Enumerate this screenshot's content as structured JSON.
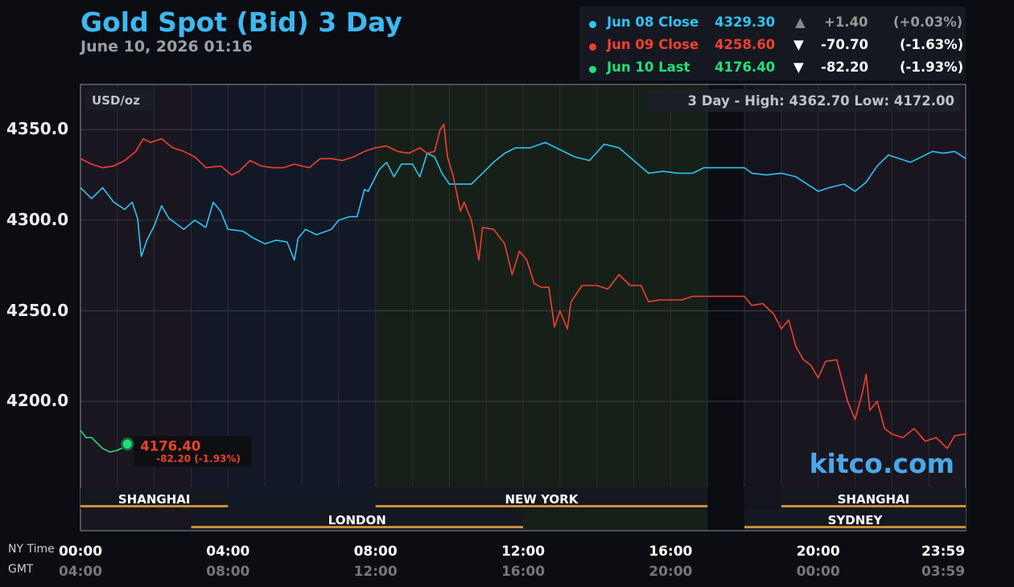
{
  "header": {
    "title": "Gold Spot (Bid) 3 Day",
    "timestamp": "June 10, 2026 01:16"
  },
  "legend": [
    {
      "label": "Jun 08 Close",
      "price": "4329.30",
      "arrow": "▲",
      "change": "+1.40",
      "pct": "(+0.03%)",
      "color": "#2ec4f2",
      "arrow_color": "#888",
      "change_color": "#999"
    },
    {
      "label": "Jun 09 Close",
      "price": "4258.60",
      "arrow": "▼",
      "change": "-70.70",
      "pct": "(-1.63%)",
      "color": "#f04030",
      "arrow_color": "#fff",
      "change_color": "#fff"
    },
    {
      "label": "Jun 10 Last",
      "price": "4176.40",
      "arrow": "▼",
      "change": "-82.20",
      "pct": "(-1.93%)",
      "color": "#22e07a",
      "arrow_color": "#fff",
      "change_color": "#fff"
    }
  ],
  "chart_data": {
    "type": "line",
    "unit_label": "USD/oz",
    "range_label": "3 Day - High: 4362.70  Low: 4172.00",
    "ylim": [
      4153,
      4375
    ],
    "yticks": [
      {
        "value": 4350,
        "label": "4350.0"
      },
      {
        "value": 4300,
        "label": "4300.0"
      },
      {
        "value": 4250,
        "label": "4250.0"
      },
      {
        "value": 4200,
        "label": "4200.0"
      }
    ],
    "xlim": [
      0,
      24
    ],
    "x_ticks": [
      {
        "x": 0,
        "ny": "00:00",
        "gmt": "04:00"
      },
      {
        "x": 4,
        "ny": "04:00",
        "gmt": "08:00"
      },
      {
        "x": 8,
        "ny": "08:00",
        "gmt": "12:00"
      },
      {
        "x": 12,
        "ny": "12:00",
        "gmt": "16:00"
      },
      {
        "x": 16,
        "ny": "16:00",
        "gmt": "20:00"
      },
      {
        "x": 20,
        "ny": "20:00",
        "gmt": "00:00"
      },
      {
        "x": 24,
        "ny": "23:59",
        "gmt": "03:59"
      }
    ],
    "tz_ny": "NY Time",
    "tz_gmt": "GMT",
    "sessions": [
      {
        "name": "SHANGHAI",
        "start": 0,
        "end": 4,
        "row": 1
      },
      {
        "name": "NEW YORK",
        "start": 8,
        "end": 17,
        "row": 1
      },
      {
        "name": "SHANGHAI",
        "start": 19,
        "end": 24,
        "row": 1
      },
      {
        "name": "LONDON",
        "start": 3,
        "end": 12,
        "row": 2
      },
      {
        "name": "SYDNEY",
        "start": 18,
        "end": 24,
        "row": 2
      }
    ],
    "series": [
      {
        "name": "Jun 08 Close",
        "color": "#2ec4f2",
        "points": [
          [
            0,
            4318
          ],
          [
            0.3,
            4312
          ],
          [
            0.6,
            4318
          ],
          [
            0.9,
            4310
          ],
          [
            1.2,
            4306
          ],
          [
            1.4,
            4310
          ],
          [
            1.55,
            4301
          ],
          [
            1.65,
            4280
          ],
          [
            1.8,
            4289
          ],
          [
            2.0,
            4297
          ],
          [
            2.2,
            4308
          ],
          [
            2.4,
            4301
          ],
          [
            2.6,
            4298
          ],
          [
            2.8,
            4295
          ],
          [
            3.1,
            4300
          ],
          [
            3.4,
            4296
          ],
          [
            3.6,
            4310
          ],
          [
            3.8,
            4305
          ],
          [
            4.0,
            4295
          ],
          [
            4.4,
            4294
          ],
          [
            4.7,
            4290
          ],
          [
            5.0,
            4287
          ],
          [
            5.3,
            4289
          ],
          [
            5.6,
            4288
          ],
          [
            5.8,
            4278
          ],
          [
            5.9,
            4290
          ],
          [
            6.1,
            4295
          ],
          [
            6.4,
            4292
          ],
          [
            6.8,
            4295
          ],
          [
            7.0,
            4300
          ],
          [
            7.3,
            4302
          ],
          [
            7.5,
            4302
          ],
          [
            7.7,
            4317
          ],
          [
            7.8,
            4316
          ],
          [
            7.9,
            4320
          ],
          [
            8.1,
            4328
          ],
          [
            8.3,
            4332
          ],
          [
            8.5,
            4324
          ],
          [
            8.7,
            4331
          ],
          [
            9.0,
            4331
          ],
          [
            9.2,
            4324
          ],
          [
            9.4,
            4337
          ],
          [
            9.6,
            4335
          ],
          [
            9.8,
            4326
          ],
          [
            10.0,
            4320
          ],
          [
            10.3,
            4320
          ],
          [
            10.6,
            4320
          ],
          [
            10.9,
            4326
          ],
          [
            11.2,
            4332
          ],
          [
            11.5,
            4337
          ],
          [
            11.8,
            4340
          ],
          [
            12.2,
            4340
          ],
          [
            12.6,
            4343
          ],
          [
            13.0,
            4339
          ],
          [
            13.4,
            4335
          ],
          [
            13.8,
            4333
          ],
          [
            14.2,
            4342
          ],
          [
            14.6,
            4340
          ],
          [
            15.0,
            4333
          ],
          [
            15.4,
            4326
          ],
          [
            15.8,
            4327
          ],
          [
            16.2,
            4326
          ],
          [
            16.6,
            4326
          ],
          [
            16.9,
            4329
          ],
          [
            17.5,
            4329
          ],
          [
            18.0,
            4329
          ],
          [
            18.2,
            4326
          ],
          [
            18.6,
            4325
          ],
          [
            19.0,
            4326
          ],
          [
            19.4,
            4324
          ],
          [
            19.7,
            4320
          ],
          [
            20.0,
            4316
          ],
          [
            20.3,
            4318
          ],
          [
            20.7,
            4320
          ],
          [
            21.0,
            4316
          ],
          [
            21.3,
            4321
          ],
          [
            21.6,
            4330
          ],
          [
            21.9,
            4336
          ],
          [
            22.2,
            4334
          ],
          [
            22.5,
            4332
          ],
          [
            22.8,
            4335
          ],
          [
            23.1,
            4338
          ],
          [
            23.4,
            4337
          ],
          [
            23.7,
            4338
          ],
          [
            24.0,
            4334
          ]
        ]
      },
      {
        "name": "Jun 09 Close",
        "color": "#f04030",
        "points": [
          [
            0,
            4334
          ],
          [
            0.3,
            4331
          ],
          [
            0.6,
            4329
          ],
          [
            0.9,
            4330
          ],
          [
            1.2,
            4333
          ],
          [
            1.5,
            4338
          ],
          [
            1.7,
            4345
          ],
          [
            1.9,
            4343
          ],
          [
            2.2,
            4345
          ],
          [
            2.5,
            4340
          ],
          [
            2.8,
            4338
          ],
          [
            3.1,
            4335
          ],
          [
            3.4,
            4329
          ],
          [
            3.8,
            4330
          ],
          [
            4.1,
            4325
          ],
          [
            4.3,
            4327
          ],
          [
            4.6,
            4333
          ],
          [
            4.9,
            4330
          ],
          [
            5.2,
            4329
          ],
          [
            5.5,
            4329
          ],
          [
            5.8,
            4331
          ],
          [
            6.2,
            4329
          ],
          [
            6.5,
            4334
          ],
          [
            6.8,
            4334
          ],
          [
            7.1,
            4333
          ],
          [
            7.4,
            4335
          ],
          [
            7.7,
            4338
          ],
          [
            8.0,
            4340
          ],
          [
            8.3,
            4341
          ],
          [
            8.6,
            4338
          ],
          [
            8.9,
            4337
          ],
          [
            9.2,
            4340
          ],
          [
            9.4,
            4337
          ],
          [
            9.6,
            4338
          ],
          [
            9.75,
            4350
          ],
          [
            9.85,
            4353
          ],
          [
            9.95,
            4335
          ],
          [
            10.1,
            4325
          ],
          [
            10.3,
            4305
          ],
          [
            10.4,
            4310
          ],
          [
            10.6,
            4300
          ],
          [
            10.8,
            4278
          ],
          [
            10.9,
            4296
          ],
          [
            11.2,
            4295
          ],
          [
            11.5,
            4287
          ],
          [
            11.7,
            4270
          ],
          [
            11.9,
            4283
          ],
          [
            12.1,
            4278
          ],
          [
            12.3,
            4265
          ],
          [
            12.5,
            4263
          ],
          [
            12.7,
            4263
          ],
          [
            12.85,
            4241
          ],
          [
            13.0,
            4250
          ],
          [
            13.2,
            4240
          ],
          [
            13.3,
            4255
          ],
          [
            13.6,
            4264
          ],
          [
            14.0,
            4264
          ],
          [
            14.3,
            4262
          ],
          [
            14.6,
            4270
          ],
          [
            14.9,
            4264
          ],
          [
            15.2,
            4264
          ],
          [
            15.4,
            4255
          ],
          [
            15.7,
            4256
          ],
          [
            16.0,
            4256
          ],
          [
            16.3,
            4256
          ],
          [
            16.6,
            4258
          ],
          [
            16.9,
            4258
          ],
          [
            17.5,
            4258
          ],
          [
            18.0,
            4258
          ],
          [
            18.2,
            4253
          ],
          [
            18.5,
            4254
          ],
          [
            18.8,
            4248
          ],
          [
            19.0,
            4240
          ],
          [
            19.2,
            4245
          ],
          [
            19.4,
            4230
          ],
          [
            19.6,
            4223
          ],
          [
            19.8,
            4220
          ],
          [
            20.0,
            4213
          ],
          [
            20.2,
            4222
          ],
          [
            20.5,
            4223
          ],
          [
            20.8,
            4200
          ],
          [
            21.0,
            4190
          ],
          [
            21.2,
            4205
          ],
          [
            21.3,
            4215
          ],
          [
            21.4,
            4195
          ],
          [
            21.6,
            4200
          ],
          [
            21.8,
            4185
          ],
          [
            22.0,
            4182
          ],
          [
            22.3,
            4180
          ],
          [
            22.6,
            4185
          ],
          [
            22.9,
            4178
          ],
          [
            23.2,
            4180
          ],
          [
            23.5,
            4174
          ],
          [
            23.7,
            4181
          ],
          [
            24.0,
            4182
          ]
        ]
      },
      {
        "name": "Jun 10 Last",
        "color": "#22e07a",
        "points": [
          [
            0,
            4184
          ],
          [
            0.15,
            4180
          ],
          [
            0.3,
            4180
          ],
          [
            0.45,
            4177
          ],
          [
            0.6,
            4174
          ],
          [
            0.8,
            4172
          ],
          [
            1.0,
            4173
          ],
          [
            1.2,
            4175
          ],
          [
            1.4,
            4176
          ],
          [
            1.27,
            4176.4
          ]
        ]
      }
    ],
    "last_marker": {
      "x": 1.27,
      "y": 4176.4,
      "price": "4176.40",
      "change": "-82.20 (-1.93%)"
    }
  },
  "watermark": "kitco.com"
}
